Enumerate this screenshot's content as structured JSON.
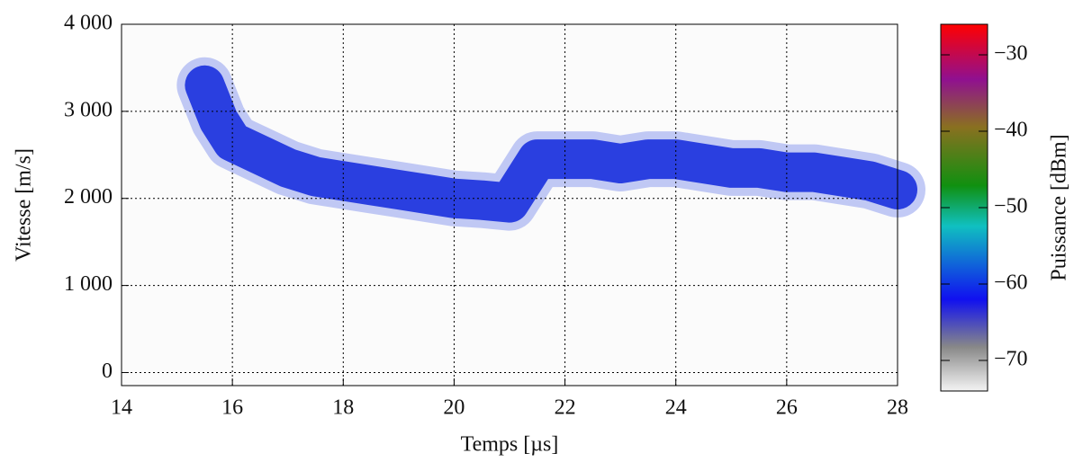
{
  "chart_data": {
    "type": "spectrogram",
    "x_label": "Temps [µs]",
    "y_label": "Vitesse [m/s]",
    "colorbar_label": "Puissance [dBm]",
    "x": [
      15.5,
      15.75,
      16,
      16.5,
      17,
      17.5,
      18,
      18.5,
      19,
      19.5,
      20,
      20.5,
      21,
      21.5,
      22,
      22.5,
      23,
      23.5,
      24,
      24.5,
      25,
      25.5,
      26,
      26.5,
      27,
      27.5,
      28
    ],
    "values": [
      3300,
      2900,
      2650,
      2500,
      2350,
      2250,
      2200,
      2150,
      2100,
      2050,
      2000,
      1980,
      1950,
      2450,
      2450,
      2450,
      2400,
      2450,
      2450,
      2400,
      2350,
      2350,
      2300,
      2300,
      2250,
      2200,
      2100
    ],
    "color": "#2a3fe0",
    "xlim": [
      14,
      28
    ],
    "xticks": [
      14,
      16,
      18,
      20,
      22,
      24,
      26,
      28
    ],
    "ylim": [
      -150,
      4000
    ],
    "yticks": [
      0,
      {
        "value": 1000,
        "label": "1 000"
      },
      {
        "value": 2000,
        "label": "2 000"
      },
      {
        "value": 3000,
        "label": "3 000"
      },
      {
        "value": 4000,
        "label": "4 000"
      }
    ],
    "clim": [
      -74,
      -26
    ],
    "cticks": [
      {
        "value": -70,
        "label": "−70"
      },
      {
        "value": -60,
        "label": "−60"
      },
      {
        "value": -50,
        "label": "−50"
      },
      {
        "value": -40,
        "label": "−40"
      },
      {
        "value": -30,
        "label": "−30"
      }
    ],
    "grid": true
  }
}
